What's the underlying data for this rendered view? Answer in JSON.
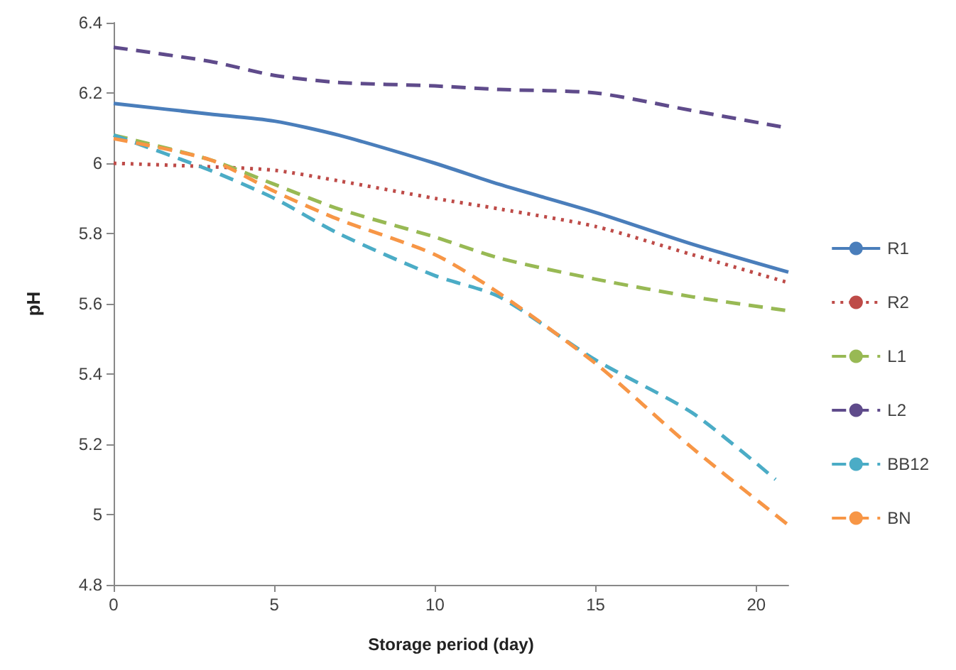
{
  "chart_data": {
    "type": "line",
    "xlabel": "Storage period (day)",
    "ylabel": "pH",
    "x": [
      0,
      3,
      5,
      7,
      10,
      12,
      15,
      18,
      21
    ],
    "series": [
      {
        "name": "R1",
        "color": "#4a7ebb",
        "line_style": "solid",
        "values": [
          6.17,
          6.14,
          6.12,
          6.08,
          6.0,
          5.94,
          5.86,
          5.77,
          5.69
        ]
      },
      {
        "name": "R2",
        "color": "#be4b48",
        "line_style": "dotted",
        "values": [
          6.0,
          5.99,
          5.98,
          5.95,
          5.9,
          5.87,
          5.82,
          5.74,
          5.66
        ]
      },
      {
        "name": "L1",
        "color": "#98b954",
        "line_style": "dashed",
        "values": [
          6.08,
          6.01,
          5.94,
          5.87,
          5.79,
          5.73,
          5.67,
          5.62,
          5.58
        ]
      },
      {
        "name": "L2",
        "color": "#5f4b8b",
        "line_style": "dashed",
        "values": [
          6.33,
          6.29,
          6.25,
          6.23,
          6.22,
          6.21,
          6.2,
          6.15,
          6.1
        ]
      },
      {
        "name": "BB12",
        "color": "#4bacc6",
        "line_style": "dashed",
        "x": [
          0,
          3,
          5,
          7,
          10,
          12,
          15,
          18,
          20.6
        ],
        "values": [
          6.08,
          5.98,
          5.9,
          5.8,
          5.68,
          5.62,
          5.44,
          5.29,
          5.1
        ]
      },
      {
        "name": "BN",
        "color": "#f79646",
        "line_style": "dashed",
        "values": [
          6.07,
          6.01,
          5.92,
          5.84,
          5.74,
          5.63,
          5.43,
          5.19,
          4.97
        ]
      }
    ],
    "xlim": [
      0,
      21
    ],
    "xticks": [
      0,
      5,
      10,
      15,
      20
    ],
    "ylim": [
      4.8,
      6.4
    ],
    "yticks": [
      4.8,
      5,
      5.2,
      5.4,
      5.6,
      5.8,
      6,
      6.2,
      6.4
    ],
    "grid": false,
    "legend": "right",
    "marker": "none"
  }
}
